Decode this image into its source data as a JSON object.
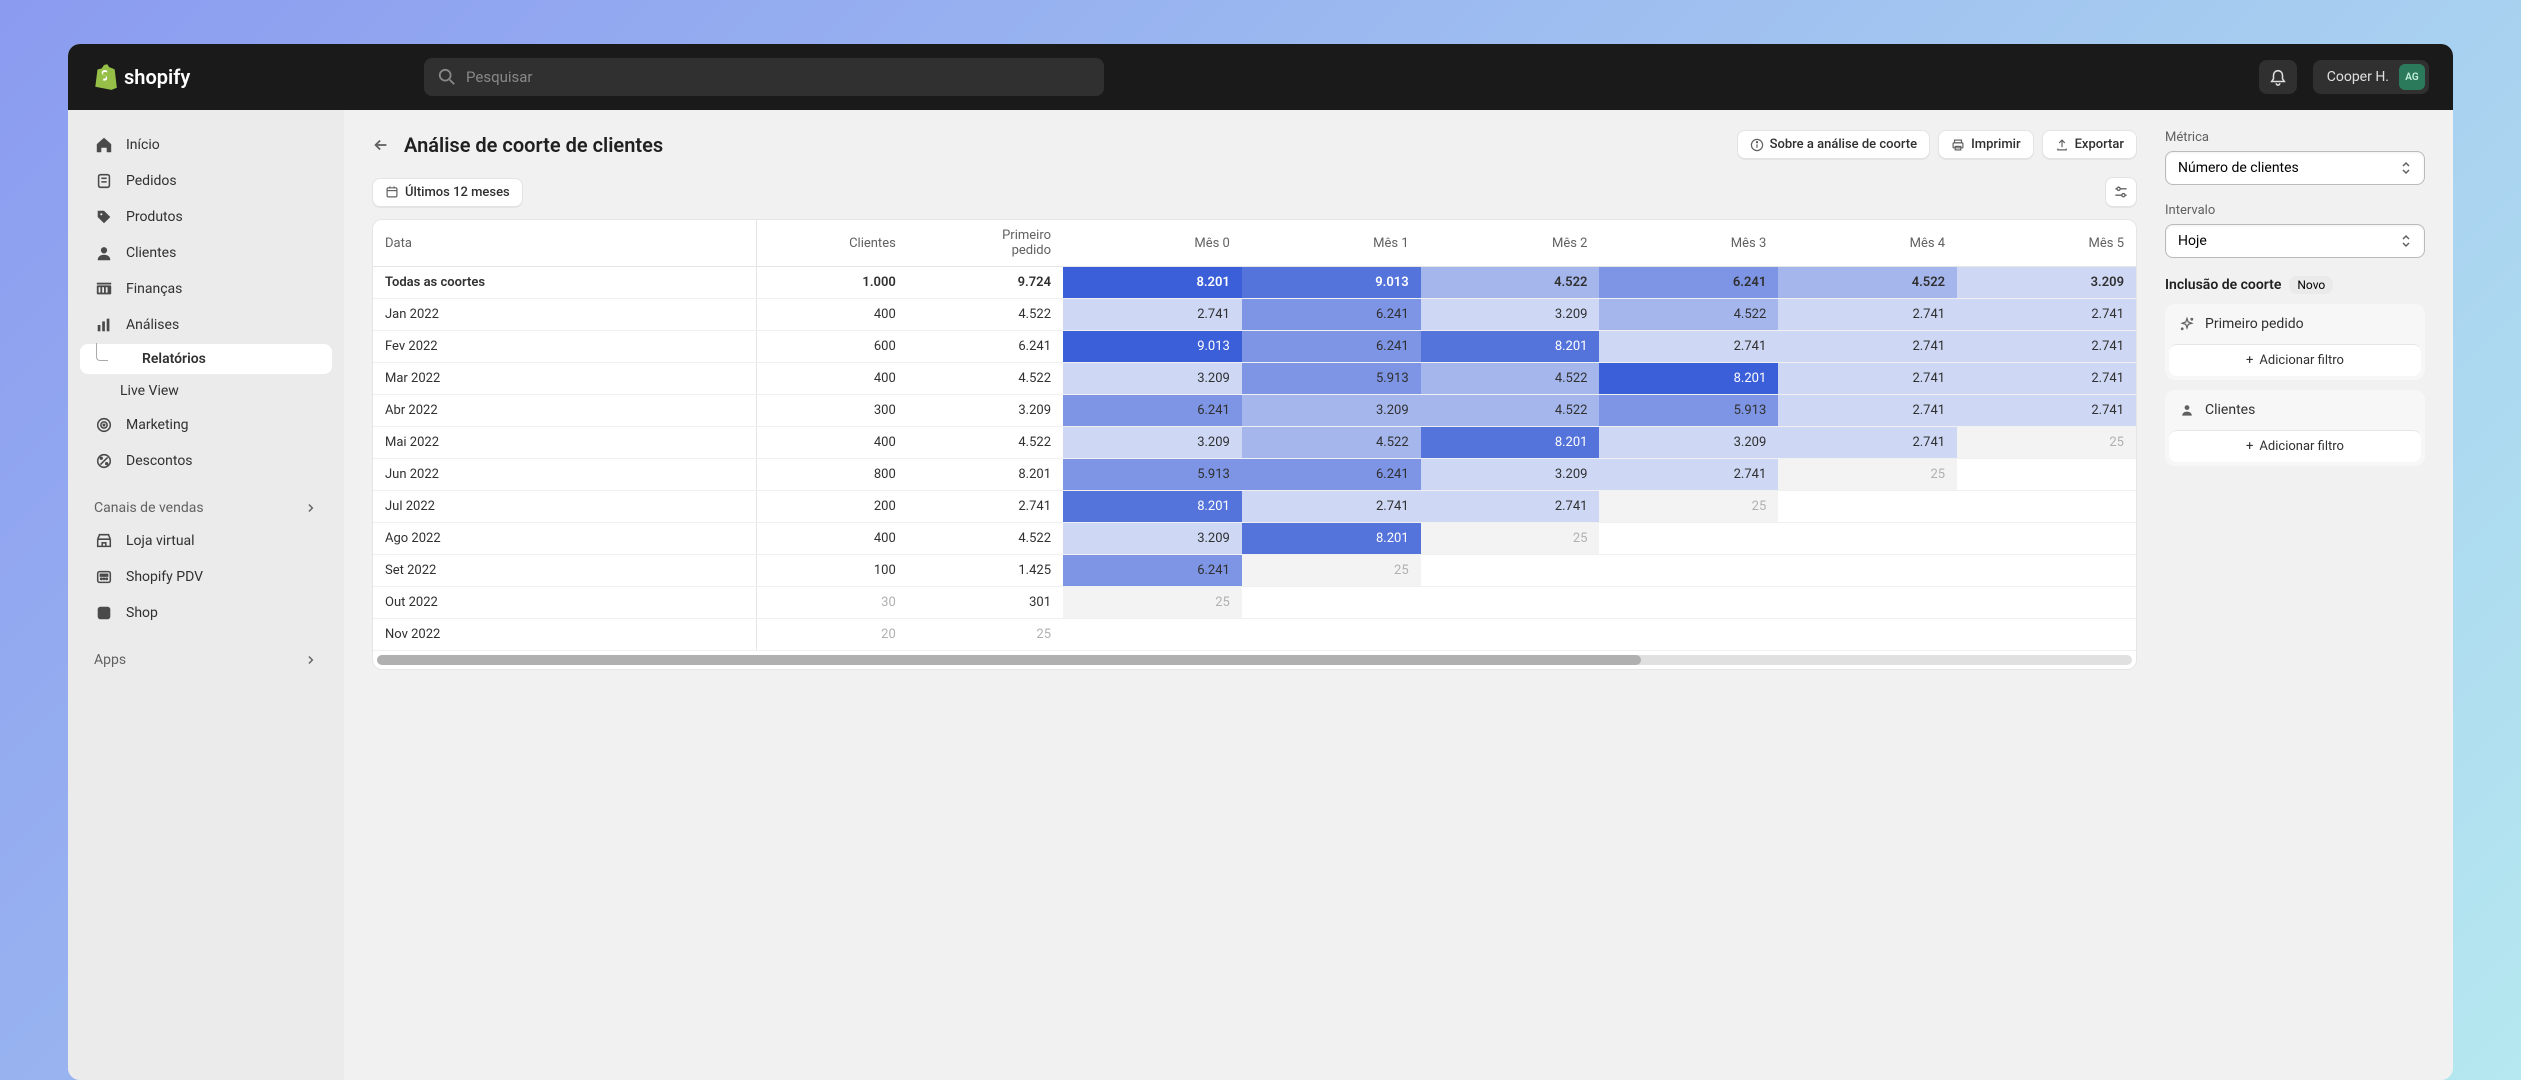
{
  "brand": "shopify",
  "search": {
    "placeholder": "Pesquisar"
  },
  "user": {
    "name": "Cooper H.",
    "initials": "AG"
  },
  "sidebar": {
    "items": [
      {
        "label": "Início"
      },
      {
        "label": "Pedidos"
      },
      {
        "label": "Produtos"
      },
      {
        "label": "Clientes"
      },
      {
        "label": "Finanças"
      },
      {
        "label": "Análises"
      },
      {
        "label": "Relatórios"
      },
      {
        "label": "Live View"
      },
      {
        "label": "Marketing"
      },
      {
        "label": "Descontos"
      }
    ],
    "channels_label": "Canais de vendas",
    "channel_items": [
      {
        "label": "Loja virtual"
      },
      {
        "label": "Shopify PDV"
      },
      {
        "label": "Shop"
      }
    ],
    "apps_label": "Apps"
  },
  "page": {
    "title": "Análise de coorte de clientes",
    "about": "Sobre a análise de coorte",
    "print": "Imprimir",
    "export": "Exportar",
    "period": "Últimos 12 meses"
  },
  "right_panel": {
    "metric_label": "Métrica",
    "metric_value": "Número de clientes",
    "interval_label": "Intervalo",
    "interval_value": "Hoje",
    "inclusion_label": "Inclusão de coorte",
    "new_badge": "Novo",
    "filter1": "Primeiro pedido",
    "filter2": "Clientes",
    "add_filter": "Adicionar filtro"
  },
  "table": {
    "columns": [
      "Data",
      "Clientes",
      "Primeiro\npedido",
      "Mês 0",
      "Mês 1",
      "Mês 2",
      "Mês 3",
      "Mês 4",
      "Mês 5"
    ],
    "colors": {
      "s1": "#3b5fd9",
      "s2": "#5574db",
      "s3": "#7d95e4",
      "s4": "#a5b6ed",
      "s5": "#ced8f5",
      "s6": "#f3f3f3",
      "text_light": "#ffffff",
      "text_dark": "#303030",
      "text_faded": "#b0b0b0"
    },
    "rows": [
      {
        "label": "Todas as coortes",
        "clientes": "1.000",
        "primeiro": "9.724",
        "months": [
          {
            "v": "8.201",
            "c": "s1"
          },
          {
            "v": "9.013",
            "c": "s2"
          },
          {
            "v": "4.522",
            "c": "s4"
          },
          {
            "v": "6.241",
            "c": "s3"
          },
          {
            "v": "4.522",
            "c": "s4"
          },
          {
            "v": "3.209",
            "c": "s5"
          }
        ]
      },
      {
        "label": "Jan 2022",
        "clientes": "400",
        "primeiro": "4.522",
        "months": [
          {
            "v": "2.741",
            "c": "s5"
          },
          {
            "v": "6.241",
            "c": "s3"
          },
          {
            "v": "3.209",
            "c": "s5"
          },
          {
            "v": "4.522",
            "c": "s4"
          },
          {
            "v": "2.741",
            "c": "s5"
          },
          {
            "v": "2.741",
            "c": "s5"
          }
        ]
      },
      {
        "label": "Fev 2022",
        "clientes": "600",
        "primeiro": "6.241",
        "months": [
          {
            "v": "9.013",
            "c": "s1"
          },
          {
            "v": "6.241",
            "c": "s3"
          },
          {
            "v": "8.201",
            "c": "s2"
          },
          {
            "v": "2.741",
            "c": "s5"
          },
          {
            "v": "2.741",
            "c": "s5"
          },
          {
            "v": "2.741",
            "c": "s5"
          }
        ]
      },
      {
        "label": "Mar 2022",
        "clientes": "400",
        "primeiro": "4.522",
        "months": [
          {
            "v": "3.209",
            "c": "s5"
          },
          {
            "v": "5.913",
            "c": "s3"
          },
          {
            "v": "4.522",
            "c": "s4"
          },
          {
            "v": "8.201",
            "c": "s1"
          },
          {
            "v": "2.741",
            "c": "s5"
          },
          {
            "v": "2.741",
            "c": "s5"
          }
        ]
      },
      {
        "label": "Abr 2022",
        "clientes": "300",
        "primeiro": "3.209",
        "months": [
          {
            "v": "6.241",
            "c": "s3"
          },
          {
            "v": "3.209",
            "c": "s4"
          },
          {
            "v": "4.522",
            "c": "s4"
          },
          {
            "v": "5.913",
            "c": "s3"
          },
          {
            "v": "2.741",
            "c": "s5"
          },
          {
            "v": "2.741",
            "c": "s5"
          }
        ]
      },
      {
        "label": "Mai 2022",
        "clientes": "400",
        "primeiro": "4.522",
        "months": [
          {
            "v": "3.209",
            "c": "s5"
          },
          {
            "v": "4.522",
            "c": "s4"
          },
          {
            "v": "8.201",
            "c": "s2"
          },
          {
            "v": "3.209",
            "c": "s5"
          },
          {
            "v": "2.741",
            "c": "s5"
          },
          {
            "v": "25",
            "c": "s6",
            "f": true
          }
        ]
      },
      {
        "label": "Jun 2022",
        "clientes": "800",
        "primeiro": "8.201",
        "months": [
          {
            "v": "5.913",
            "c": "s3"
          },
          {
            "v": "6.241",
            "c": "s3"
          },
          {
            "v": "3.209",
            "c": "s5"
          },
          {
            "v": "2.741",
            "c": "s5"
          },
          {
            "v": "25",
            "c": "s6",
            "f": true
          }
        ]
      },
      {
        "label": "Jul 2022",
        "clientes": "200",
        "primeiro": "2.741",
        "months": [
          {
            "v": "8.201",
            "c": "s2"
          },
          {
            "v": "2.741",
            "c": "s5"
          },
          {
            "v": "2.741",
            "c": "s5"
          },
          {
            "v": "25",
            "c": "s6",
            "f": true
          }
        ]
      },
      {
        "label": "Ago 2022",
        "clientes": "400",
        "primeiro": "4.522",
        "months": [
          {
            "v": "3.209",
            "c": "s5"
          },
          {
            "v": "8.201",
            "c": "s2"
          },
          {
            "v": "25",
            "c": "s6",
            "f": true
          }
        ]
      },
      {
        "label": "Set 2022",
        "clientes": "100",
        "primeiro": "1.425",
        "months": [
          {
            "v": "6.241",
            "c": "s3"
          },
          {
            "v": "25",
            "c": "s6",
            "f": true
          }
        ]
      },
      {
        "label": "Out 2022",
        "clientes": "30",
        "clientes_faded": true,
        "primeiro": "301",
        "months": [
          {
            "v": "25",
            "c": "s6",
            "f": true
          }
        ]
      },
      {
        "label": "Nov 2022",
        "clientes": "20",
        "clientes_faded": true,
        "primeiro": "25",
        "primeiro_faded": true,
        "months": []
      }
    ]
  }
}
